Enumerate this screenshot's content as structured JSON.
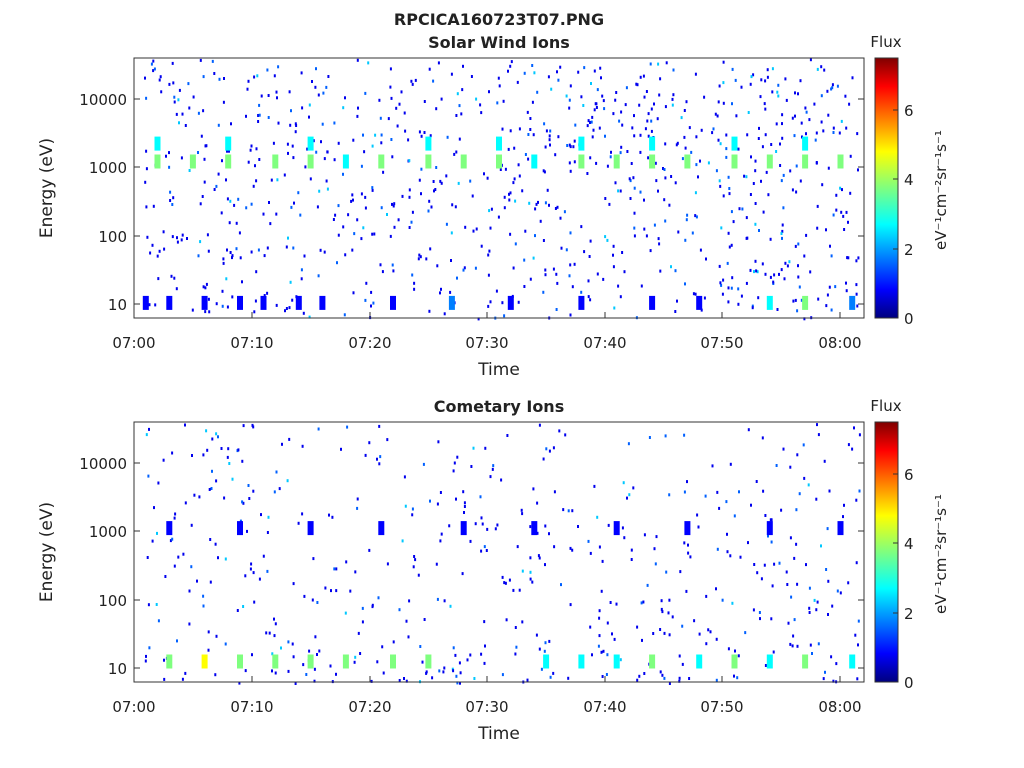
{
  "figure_title": "RPCICA160723T07.PNG",
  "colormap": [
    "#00007f",
    "#0000ff",
    "#007fff",
    "#00ffff",
    "#7fff7f",
    "#ffff00",
    "#ff7f00",
    "#ff0000",
    "#7f0000"
  ],
  "chart_data": [
    {
      "type": "heatmap",
      "title": "Solar Wind Ions",
      "xlabel": "Time",
      "ylabel": "Energy (eV)",
      "yscale": "log",
      "ylim": [
        6,
        40000
      ],
      "xlim": [
        "07:00",
        "08:02"
      ],
      "x_ticks": [
        "07:00",
        "07:10",
        "07:20",
        "07:30",
        "07:40",
        "07:50",
        "08:00"
      ],
      "y_ticks": [
        "10",
        "100",
        "1000",
        "10000"
      ],
      "colorbar": {
        "title": "Flux",
        "label": "eV⁻¹cm⁻²sr⁻¹s⁻¹",
        "range": [
          0,
          7.3
        ],
        "ticks": [
          "0",
          "2",
          "4",
          "6"
        ]
      },
      "cells": [
        {
          "t": "07:02",
          "e": 1200,
          "v": 3.2
        },
        {
          "t": "07:05",
          "e": 1200,
          "v": 3.4
        },
        {
          "t": "07:08",
          "e": 1200,
          "v": 3.5
        },
        {
          "t": "07:12",
          "e": 1200,
          "v": 3.3
        },
        {
          "t": "07:15",
          "e": 1200,
          "v": 3.4
        },
        {
          "t": "07:18",
          "e": 1200,
          "v": 3.0
        },
        {
          "t": "07:21",
          "e": 1200,
          "v": 3.3
        },
        {
          "t": "07:25",
          "e": 1200,
          "v": 3.2
        },
        {
          "t": "07:28",
          "e": 1200,
          "v": 3.6
        },
        {
          "t": "07:31",
          "e": 1200,
          "v": 3.5
        },
        {
          "t": "07:34",
          "e": 1200,
          "v": 3.0
        },
        {
          "t": "07:38",
          "e": 1200,
          "v": 3.4
        },
        {
          "t": "07:41",
          "e": 1200,
          "v": 3.2
        },
        {
          "t": "07:44",
          "e": 1200,
          "v": 3.5
        },
        {
          "t": "07:47",
          "e": 1200,
          "v": 3.3
        },
        {
          "t": "07:51",
          "e": 1200,
          "v": 3.6
        },
        {
          "t": "07:54",
          "e": 1200,
          "v": 3.4
        },
        {
          "t": "07:57",
          "e": 1200,
          "v": 3.3
        },
        {
          "t": "08:00",
          "e": 1200,
          "v": 3.5
        },
        {
          "t": "07:02",
          "e": 2200,
          "v": 2.4
        },
        {
          "t": "07:08",
          "e": 2200,
          "v": 2.6
        },
        {
          "t": "07:15",
          "e": 2200,
          "v": 2.3
        },
        {
          "t": "07:25",
          "e": 2200,
          "v": 2.5
        },
        {
          "t": "07:31",
          "e": 2200,
          "v": 2.7
        },
        {
          "t": "07:38",
          "e": 2200,
          "v": 2.5
        },
        {
          "t": "07:44",
          "e": 2200,
          "v": 2.4
        },
        {
          "t": "07:51",
          "e": 2200,
          "v": 2.6
        },
        {
          "t": "07:57",
          "e": 2200,
          "v": 2.4
        },
        {
          "t": "07:01",
          "e": 10,
          "v": 1.0
        },
        {
          "t": "07:03",
          "e": 10,
          "v": 1.2
        },
        {
          "t": "07:06",
          "e": 10,
          "v": 1.1
        },
        {
          "t": "07:09",
          "e": 10,
          "v": 1.0
        },
        {
          "t": "07:11",
          "e": 10,
          "v": 1.3
        },
        {
          "t": "07:14",
          "e": 10,
          "v": 1.1
        },
        {
          "t": "07:16",
          "e": 10,
          "v": 1.2
        },
        {
          "t": "07:22",
          "e": 10,
          "v": 1.0
        },
        {
          "t": "07:27",
          "e": 10,
          "v": 1.6
        },
        {
          "t": "07:32",
          "e": 10,
          "v": 1.1
        },
        {
          "t": "07:38",
          "e": 10,
          "v": 1.2
        },
        {
          "t": "07:44",
          "e": 10,
          "v": 1.1
        },
        {
          "t": "07:48",
          "e": 10,
          "v": 1.3
        },
        {
          "t": "07:54",
          "e": 10,
          "v": 2.4
        },
        {
          "t": "07:57",
          "e": 10,
          "v": 3.2
        },
        {
          "t": "08:01",
          "e": 10,
          "v": 1.4
        }
      ]
    },
    {
      "type": "heatmap",
      "title": "Cometary Ions",
      "xlabel": "Time",
      "ylabel": "Energy (eV)",
      "yscale": "log",
      "ylim": [
        6,
        40000
      ],
      "xlim": [
        "07:00",
        "08:02"
      ],
      "x_ticks": [
        "07:00",
        "07:10",
        "07:20",
        "07:30",
        "07:40",
        "07:50",
        "08:00"
      ],
      "y_ticks": [
        "10",
        "100",
        "1000",
        "10000"
      ],
      "colorbar": {
        "title": "Flux",
        "label": "eV⁻¹cm⁻²sr⁻¹s⁻¹",
        "range": [
          0,
          7.3
        ],
        "ticks": [
          "0",
          "2",
          "4",
          "6"
        ]
      },
      "cells": [
        {
          "t": "07:03",
          "e": 12,
          "v": 3.6
        },
        {
          "t": "07:06",
          "e": 12,
          "v": 4.2
        },
        {
          "t": "07:09",
          "e": 12,
          "v": 3.4
        },
        {
          "t": "07:12",
          "e": 12,
          "v": 3.8
        },
        {
          "t": "07:15",
          "e": 12,
          "v": 3.2
        },
        {
          "t": "07:18",
          "e": 12,
          "v": 3.5
        },
        {
          "t": "07:22",
          "e": 12,
          "v": 3.3
        },
        {
          "t": "07:25",
          "e": 12,
          "v": 3.6
        },
        {
          "t": "07:35",
          "e": 12,
          "v": 2.8
        },
        {
          "t": "07:38",
          "e": 12,
          "v": 3.1
        },
        {
          "t": "07:41",
          "e": 12,
          "v": 3.0
        },
        {
          "t": "07:44",
          "e": 12,
          "v": 3.3
        },
        {
          "t": "07:48",
          "e": 12,
          "v": 2.9
        },
        {
          "t": "07:51",
          "e": 12,
          "v": 3.2
        },
        {
          "t": "07:54",
          "e": 12,
          "v": 3.0
        },
        {
          "t": "07:57",
          "e": 12,
          "v": 3.3
        },
        {
          "t": "08:01",
          "e": 12,
          "v": 2.9
        },
        {
          "t": "07:03",
          "e": 1100,
          "v": 1.1
        },
        {
          "t": "07:09",
          "e": 1100,
          "v": 1.2
        },
        {
          "t": "07:15",
          "e": 1100,
          "v": 1.0
        },
        {
          "t": "07:21",
          "e": 1100,
          "v": 1.1
        },
        {
          "t": "07:28",
          "e": 1100,
          "v": 1.2
        },
        {
          "t": "07:34",
          "e": 1100,
          "v": 1.0
        },
        {
          "t": "07:41",
          "e": 1100,
          "v": 1.1
        },
        {
          "t": "07:47",
          "e": 1100,
          "v": 1.0
        },
        {
          "t": "07:54",
          "e": 1100,
          "v": 1.2
        },
        {
          "t": "08:00",
          "e": 1100,
          "v": 1.1
        }
      ]
    }
  ]
}
